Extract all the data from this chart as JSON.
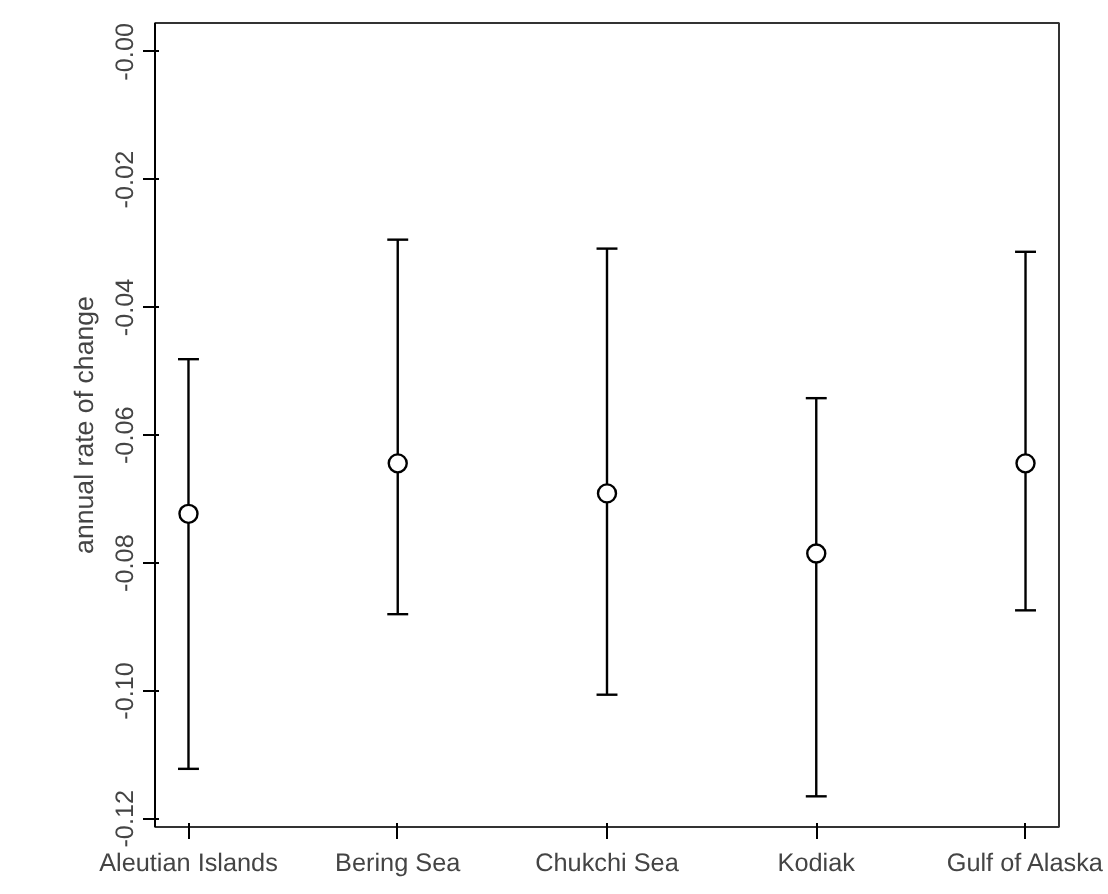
{
  "chart_data": {
    "type": "scatter",
    "ylabel": "annual rate of change",
    "categories": [
      "Aleutian Islands",
      "Bering Sea",
      "Chukchi Sea",
      "Kodiak",
      "Gulf of Alaska"
    ],
    "values": [
      -0.0723,
      -0.0644,
      -0.0691,
      -0.0785,
      -0.0644
    ],
    "errors": [
      [
        -0.1122,
        -0.0481
      ],
      [
        -0.088,
        -0.0294
      ],
      [
        -0.1006,
        -0.0308
      ],
      [
        -0.1165,
        -0.0542
      ],
      [
        -0.0874,
        -0.0313
      ]
    ],
    "color": "#000000",
    "marker": "circle",
    "grid": false,
    "ylim": [
      -0.1213,
      0.0045
    ],
    "yticks": [
      {
        "value": 0,
        "label": "-0.00"
      },
      {
        "value": -0.02,
        "label": "-0.02"
      },
      {
        "value": -0.04,
        "label": "-0.04"
      },
      {
        "value": -0.06,
        "label": "-0.06"
      },
      {
        "value": -0.08,
        "label": "-0.08"
      },
      {
        "value": -0.1,
        "label": "-0.10"
      },
      {
        "value": -0.12,
        "label": "-0.12"
      }
    ]
  }
}
